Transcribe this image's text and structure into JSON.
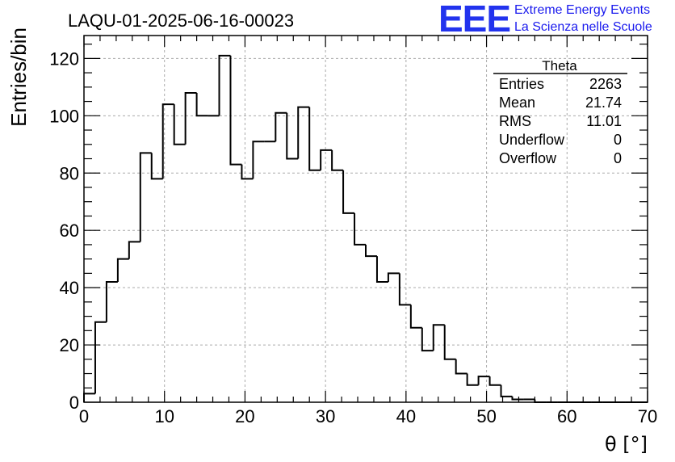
{
  "header": {
    "run_title": "LAQU-01-2025-06-16-00023"
  },
  "logo": {
    "mark": "EEE",
    "line1": "Extreme Energy Events",
    "line2": "La Scienza nelle Scuole",
    "color": "#1a1aee"
  },
  "stats_box": {
    "title": "Theta",
    "rows": [
      {
        "label": "Entries",
        "value": "2263"
      },
      {
        "label": "Mean",
        "value": "21.74"
      },
      {
        "label": "RMS",
        "value": "11.01"
      },
      {
        "label": "Underflow",
        "value": "0"
      },
      {
        "label": "Overflow",
        "value": "0"
      }
    ]
  },
  "chart_data": {
    "type": "histogram",
    "title": "LAQU-01-2025-06-16-00023",
    "xlabel": "θ [°]",
    "ylabel": "Entries/bin",
    "xlim": [
      0,
      70
    ],
    "ylim": [
      0,
      128
    ],
    "grid": true,
    "bin_width": 1.4,
    "x_ticks": [
      0,
      10,
      20,
      30,
      40,
      50,
      60,
      70
    ],
    "y_ticks": [
      0,
      20,
      40,
      60,
      80,
      100,
      120
    ],
    "values": [
      3,
      28,
      42,
      50,
      56,
      87,
      78,
      104,
      90,
      108,
      100,
      100,
      121,
      83,
      78,
      91,
      91,
      101,
      85,
      103,
      81,
      88,
      81,
      66,
      55,
      51,
      42,
      45,
      34,
      26,
      18,
      27,
      15,
      10,
      6,
      9,
      6,
      2,
      1,
      1,
      0,
      0,
      0,
      0,
      0,
      0,
      0,
      0,
      0,
      0
    ],
    "line_color": "#000000"
  }
}
